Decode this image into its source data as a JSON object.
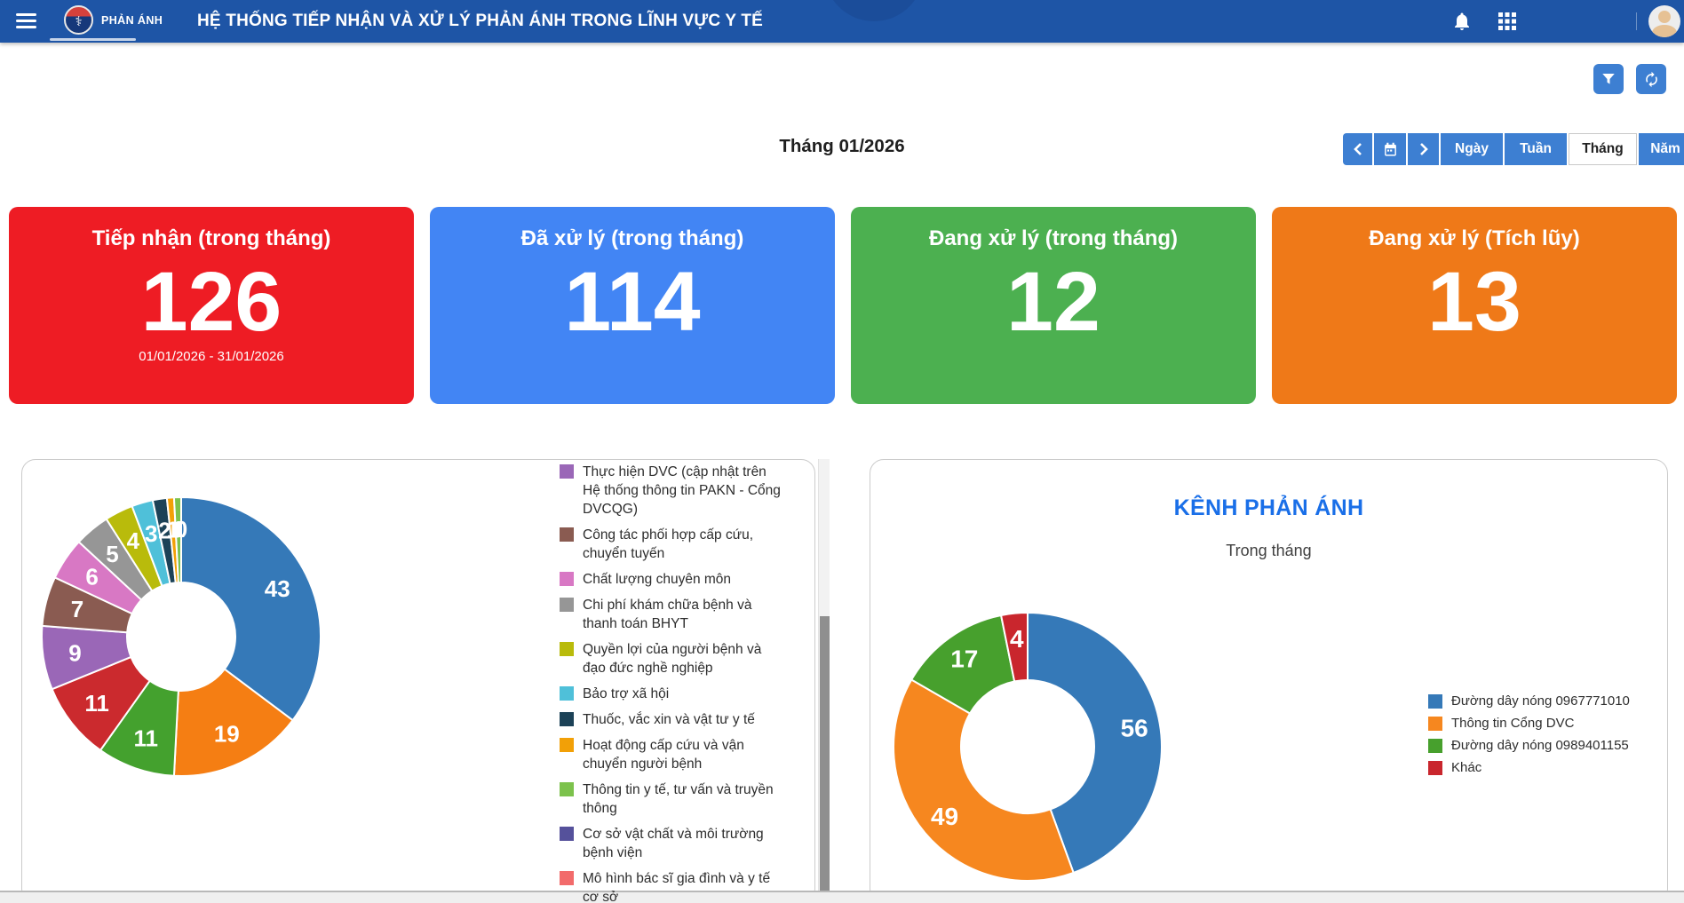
{
  "navbar": {
    "brand": "PHẢN ÁNH",
    "title": "HỆ THỐNG TIẾP NHẬN VÀ XỬ LÝ PHẢN ÁNH TRONG LĨNH VỰC Y TẾ"
  },
  "icons": {
    "menu": "hamburger",
    "logo": "caduceus-medical-badge",
    "notifications": "bell",
    "apps": "grid-3x3",
    "filter": "funnel",
    "refresh": "sync-arrows",
    "prev": "chevron-left",
    "calendar": "calendar",
    "next": "chevron-right"
  },
  "period": {
    "label": "Tháng 01/2026",
    "views": [
      "Ngày",
      "Tuần",
      "Tháng",
      "Năm"
    ],
    "active_view": "Tháng"
  },
  "stats": {
    "cards": [
      {
        "label": "Tiếp nhận (trong tháng)",
        "value": "126",
        "sub": "01/01/2026 - 31/01/2026",
        "color": "#ee1c24"
      },
      {
        "label": "Đã xử lý (trong tháng)",
        "value": "114",
        "sub": "",
        "color": "#4285f4"
      },
      {
        "label": "Đang xử lý (trong tháng)",
        "value": "12",
        "sub": "",
        "color": "#4cb050"
      },
      {
        "label": "Đang xử lý (Tích lũy)",
        "value": "13",
        "sub": "",
        "color": "#ef7918"
      }
    ]
  },
  "chart_data": [
    {
      "type": "pie",
      "name": "category-donut",
      "values": [
        43,
        19,
        11,
        11,
        9,
        7,
        6,
        5,
        4,
        3,
        2,
        1,
        1,
        0
      ],
      "colors": [
        "#3579b8",
        "#f57e13",
        "#44a12e",
        "#cb2a2e",
        "#9a67b7",
        "#8a5b51",
        "#d878c4",
        "#969696",
        "#b9bb0b",
        "#4fc0d9",
        "#1c4257",
        "#f2a007",
        "#7cc24c",
        "#d9d9d9"
      ],
      "legend_position": "right",
      "visible_legend": [
        {
          "label": "Thực hiện DVC (cập nhật trên Hệ thống thông tin PAKN - Cổng DVCQG)",
          "color": "#9a67b7"
        },
        {
          "label": "Công tác phối hợp cấp cứu, chuyển tuyến",
          "color": "#8a5b51"
        },
        {
          "label": "Chất lượng chuyên môn",
          "color": "#d878c4"
        },
        {
          "label": "Chi phí khám chữa bệnh và thanh toán BHYT",
          "color": "#969696"
        },
        {
          "label": "Quyền lợi của người bệnh và đạo đức nghề nghiệp",
          "color": "#b9bb0b"
        },
        {
          "label": "Bảo trợ xã hội",
          "color": "#4fc0d9"
        },
        {
          "label": "Thuốc, vắc xin và vật tư y tế",
          "color": "#1c4257"
        },
        {
          "label": "Hoạt động cấp cứu và vận chuyển người bệnh",
          "color": "#f2a007"
        },
        {
          "label": "Thông tin y tế, tư vấn và truyền thông",
          "color": "#7cc24c"
        },
        {
          "label": "Cơ sở vật chất và môi trường bệnh viện",
          "color": "#55519b"
        },
        {
          "label": "Mô hình bác sĩ gia đình và y tế cơ sở",
          "color": "#f26b6b"
        },
        {
          "label": "",
          "color": "#d9d9d9"
        }
      ]
    },
    {
      "type": "pie",
      "name": "channel-donut",
      "title": "KÊNH PHẢN ÁNH",
      "subtitle": "Trong tháng",
      "categories": [
        "Đường dây nóng 0967771010",
        "Thông tin Cổng DVC",
        "Đường dây nóng 0989401155",
        "Khác"
      ],
      "values": [
        56,
        49,
        17,
        4
      ],
      "colors": [
        "#3579b8",
        "#f6871f",
        "#47a02d",
        "#c9262d"
      ],
      "legend_position": "right"
    }
  ]
}
